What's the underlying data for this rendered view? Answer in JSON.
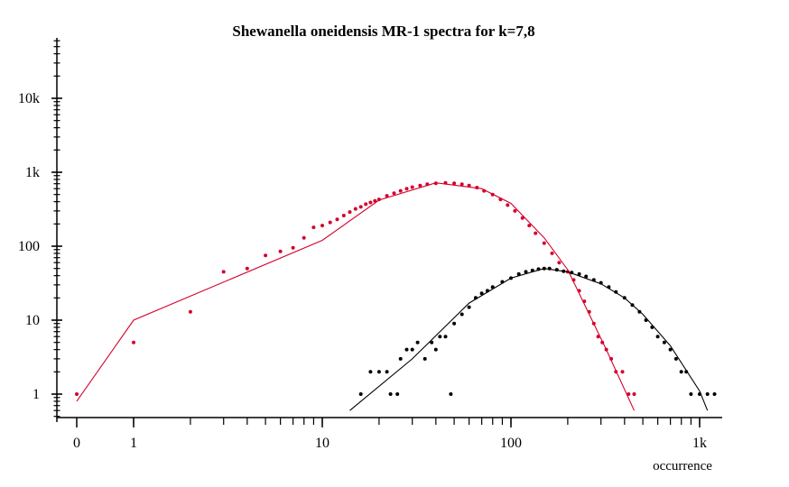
{
  "chart_data": {
    "type": "scatter",
    "title": "Shewanella oneidensis MR-1 spectra for k=7,8",
    "xlabel": "occurrence",
    "ylabel": "",
    "x_scale": "log (with 0 and 1 shown on an expanded left segment)",
    "y_scale": "log",
    "xlim": [
      0,
      1300
    ],
    "ylim": [
      0.5,
      50000
    ],
    "x_ticks": [
      {
        "value": 0,
        "label": "0"
      },
      {
        "value": 1,
        "label": "1"
      },
      {
        "value": 10,
        "label": "10"
      },
      {
        "value": 100,
        "label": "100"
      },
      {
        "value": 1000,
        "label": "1k"
      }
    ],
    "y_ticks": [
      {
        "value": 1,
        "label": "1"
      },
      {
        "value": 10,
        "label": "10"
      },
      {
        "value": 100,
        "label": "100"
      },
      {
        "value": 1000,
        "label": "1k"
      },
      {
        "value": 10000,
        "label": "10k"
      }
    ],
    "colors": {
      "k7": "#d4002b",
      "k8": "#000000"
    },
    "series": [
      {
        "color": "#d4002b",
        "points": [
          [
            0,
            1
          ],
          [
            1,
            5
          ],
          [
            2,
            13
          ],
          [
            3,
            45
          ],
          [
            4,
            50
          ],
          [
            5,
            75
          ],
          [
            6,
            85
          ],
          [
            7,
            95
          ],
          [
            8,
            130
          ],
          [
            9,
            180
          ],
          [
            10,
            190
          ],
          [
            11,
            210
          ],
          [
            12,
            230
          ],
          [
            13,
            260
          ],
          [
            14,
            290
          ],
          [
            15,
            320
          ],
          [
            16,
            340
          ],
          [
            17,
            370
          ],
          [
            18,
            390
          ],
          [
            19,
            410
          ],
          [
            20,
            430
          ],
          [
            22,
            480
          ],
          [
            24,
            520
          ],
          [
            26,
            560
          ],
          [
            28,
            600
          ],
          [
            30,
            630
          ],
          [
            33,
            660
          ],
          [
            36,
            690
          ],
          [
            40,
            710
          ],
          [
            45,
            720
          ],
          [
            50,
            710
          ],
          [
            55,
            690
          ],
          [
            60,
            660
          ],
          [
            66,
            620
          ],
          [
            72,
            560
          ],
          [
            80,
            500
          ],
          [
            88,
            430
          ],
          [
            96,
            360
          ],
          [
            105,
            300
          ],
          [
            115,
            240
          ],
          [
            125,
            190
          ],
          [
            135,
            150
          ],
          [
            150,
            110
          ],
          [
            165,
            80
          ],
          [
            180,
            60
          ],
          [
            200,
            45
          ],
          [
            215,
            35
          ],
          [
            230,
            25
          ],
          [
            245,
            18
          ],
          [
            260,
            13
          ],
          [
            275,
            9
          ],
          [
            290,
            6
          ],
          [
            305,
            5
          ],
          [
            320,
            4
          ],
          [
            340,
            3
          ],
          [
            360,
            2
          ],
          [
            390,
            2
          ],
          [
            420,
            1
          ],
          [
            450,
            1
          ]
        ],
        "fit_line": [
          [
            0,
            0.8
          ],
          [
            1,
            10
          ],
          [
            10,
            120
          ],
          [
            20,
            420
          ],
          [
            40,
            720
          ],
          [
            70,
            600
          ],
          [
            100,
            380
          ],
          [
            150,
            130
          ],
          [
            200,
            48
          ],
          [
            260,
            12
          ],
          [
            320,
            4
          ],
          [
            450,
            0.6
          ]
        ]
      },
      {
        "color": "#000000",
        "points": [
          [
            16,
            1
          ],
          [
            18,
            2
          ],
          [
            20,
            2
          ],
          [
            22,
            2
          ],
          [
            23,
            1
          ],
          [
            25,
            1
          ],
          [
            26,
            3
          ],
          [
            28,
            4
          ],
          [
            30,
            4
          ],
          [
            32,
            5
          ],
          [
            35,
            3
          ],
          [
            38,
            5
          ],
          [
            40,
            4
          ],
          [
            42,
            6
          ],
          [
            45,
            6
          ],
          [
            48,
            1
          ],
          [
            50,
            9
          ],
          [
            55,
            12
          ],
          [
            60,
            15
          ],
          [
            65,
            20
          ],
          [
            70,
            23
          ],
          [
            75,
            25
          ],
          [
            80,
            28
          ],
          [
            90,
            33
          ],
          [
            100,
            37
          ],
          [
            110,
            42
          ],
          [
            120,
            45
          ],
          [
            130,
            47
          ],
          [
            140,
            49
          ],
          [
            150,
            50
          ],
          [
            160,
            50
          ],
          [
            175,
            48
          ],
          [
            190,
            46
          ],
          [
            210,
            44
          ],
          [
            230,
            42
          ],
          [
            250,
            39
          ],
          [
            275,
            35
          ],
          [
            300,
            32
          ],
          [
            330,
            28
          ],
          [
            360,
            24
          ],
          [
            400,
            20
          ],
          [
            440,
            16
          ],
          [
            480,
            13
          ],
          [
            520,
            10
          ],
          [
            560,
            8
          ],
          [
            600,
            6
          ],
          [
            650,
            5
          ],
          [
            700,
            4
          ],
          [
            750,
            3
          ],
          [
            800,
            2
          ],
          [
            850,
            2
          ],
          [
            900,
            1
          ],
          [
            1000,
            1
          ],
          [
            1100,
            1
          ],
          [
            1200,
            1
          ]
        ],
        "fit_line": [
          [
            14,
            0.6
          ],
          [
            30,
            3
          ],
          [
            60,
            17
          ],
          [
            100,
            37
          ],
          [
            150,
            50
          ],
          [
            200,
            45
          ],
          [
            300,
            31
          ],
          [
            400,
            20
          ],
          [
            500,
            12
          ],
          [
            700,
            4.5
          ],
          [
            1000,
            1.1
          ],
          [
            1100,
            0.6
          ]
        ]
      }
    ],
    "grid": false,
    "legend": "none"
  }
}
